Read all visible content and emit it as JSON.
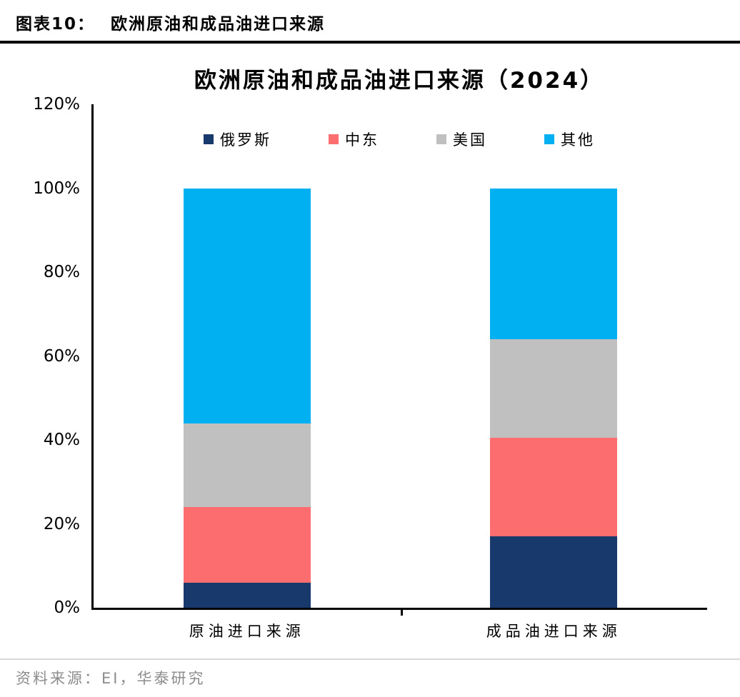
{
  "header": {
    "figure_label": "图表10：",
    "figure_title": "欧洲原油和成品油进口来源"
  },
  "footer": {
    "source": "资料来源：EI，华泰研究"
  },
  "chart_data": {
    "type": "bar",
    "stacked": true,
    "title": "欧洲原油和成品油进口来源（2024）",
    "categories": [
      "原油进口来源",
      "成品油进口来源"
    ],
    "series": [
      {
        "key": "russia",
        "name": "俄罗斯",
        "color": "#17396b",
        "values": [
          6,
          17
        ]
      },
      {
        "key": "middle-east",
        "name": "中东",
        "color": "#fb6d6e",
        "values": [
          18,
          23.5
        ]
      },
      {
        "key": "us",
        "name": "美国",
        "color": "#c0c0c0",
        "values": [
          20,
          23.5
        ]
      },
      {
        "key": "others",
        "name": "其他",
        "color": "#00b0f0",
        "values": [
          56,
          36
        ]
      }
    ],
    "xlabel": "",
    "ylabel": "",
    "ylim": [
      0,
      120
    ],
    "ytick_step": 20,
    "ytick_suffix": "%",
    "grid": false,
    "legend_position": "top-inside"
  }
}
